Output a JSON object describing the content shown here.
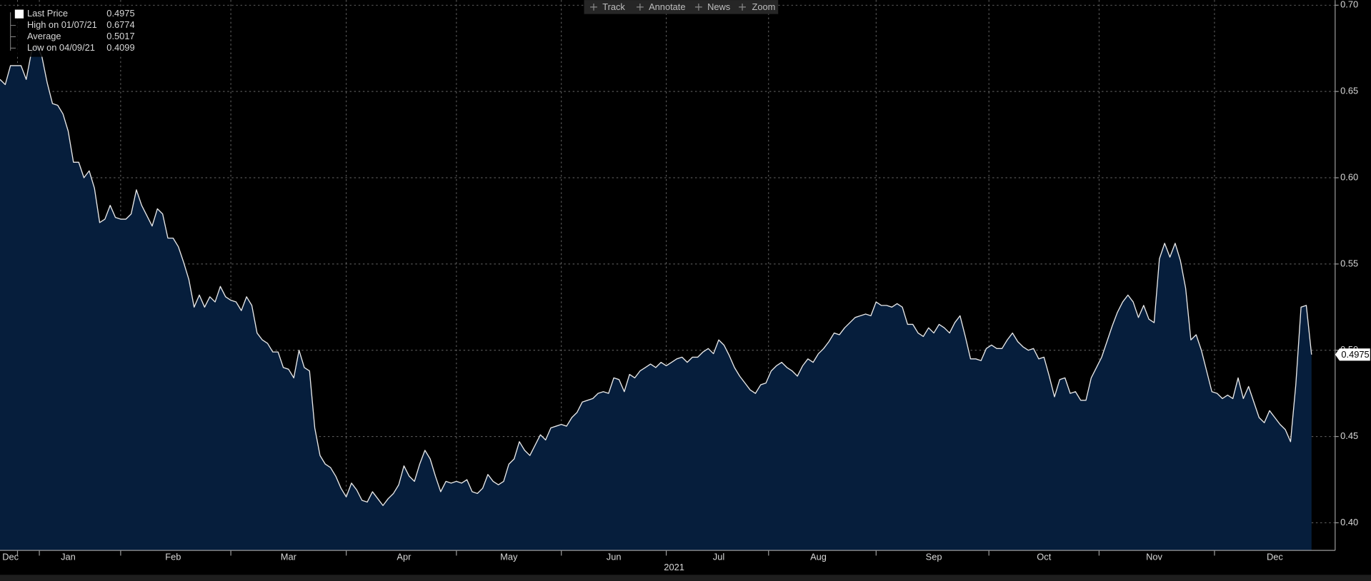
{
  "chart_data": {
    "type": "area",
    "toolbar": [
      "Track",
      "Annotate",
      "News",
      "Zoom"
    ],
    "series": [
      {
        "name": "Last Price",
        "color": "#e8e8e8",
        "fill": "#061e3c",
        "values": [
          0.657,
          0.654,
          0.665,
          0.665,
          0.665,
          0.657,
          0.673,
          0.677,
          0.67,
          0.655,
          0.643,
          0.642,
          0.637,
          0.627,
          0.609,
          0.609,
          0.6,
          0.604,
          0.594,
          0.574,
          0.576,
          0.584,
          0.577,
          0.576,
          0.576,
          0.579,
          0.593,
          0.584,
          0.578,
          0.572,
          0.582,
          0.579,
          0.565,
          0.565,
          0.56,
          0.551,
          0.541,
          0.525,
          0.532,
          0.525,
          0.531,
          0.528,
          0.537,
          0.531,
          0.529,
          0.528,
          0.523,
          0.531,
          0.526,
          0.51,
          0.506,
          0.504,
          0.499,
          0.499,
          0.49,
          0.489,
          0.484,
          0.5,
          0.49,
          0.488,
          0.455,
          0.439,
          0.434,
          0.432,
          0.427,
          0.42,
          0.415,
          0.423,
          0.419,
          0.413,
          0.412,
          0.418,
          0.414,
          0.41,
          0.414,
          0.417,
          0.422,
          0.433,
          0.427,
          0.424,
          0.434,
          0.442,
          0.437,
          0.427,
          0.418,
          0.424,
          0.423,
          0.424,
          0.423,
          0.425,
          0.418,
          0.417,
          0.42,
          0.428,
          0.424,
          0.422,
          0.424,
          0.434,
          0.437,
          0.447,
          0.442,
          0.439,
          0.445,
          0.451,
          0.448,
          0.455,
          0.456,
          0.457,
          0.456,
          0.461,
          0.464,
          0.47,
          0.471,
          0.472,
          0.475,
          0.476,
          0.475,
          0.484,
          0.483,
          0.476,
          0.486,
          0.484,
          0.488,
          0.49,
          0.492,
          0.49,
          0.493,
          0.491,
          0.493,
          0.495,
          0.496,
          0.493,
          0.496,
          0.496,
          0.499,
          0.501,
          0.498,
          0.506,
          0.503,
          0.497,
          0.49,
          0.485,
          0.481,
          0.477,
          0.475,
          0.48,
          0.481,
          0.488,
          0.491,
          0.493,
          0.49,
          0.488,
          0.485,
          0.491,
          0.495,
          0.493,
          0.498,
          0.501,
          0.505,
          0.51,
          0.509,
          0.513,
          0.516,
          0.519,
          0.52,
          0.521,
          0.52,
          0.528,
          0.526,
          0.526,
          0.525,
          0.527,
          0.525,
          0.515,
          0.515,
          0.51,
          0.508,
          0.513,
          0.51,
          0.515,
          0.513,
          0.51,
          0.516,
          0.52,
          0.508,
          0.495,
          0.495,
          0.494,
          0.501,
          0.503,
          0.501,
          0.501,
          0.506,
          0.51,
          0.505,
          0.502,
          0.5,
          0.501,
          0.495,
          0.496,
          0.485,
          0.473,
          0.483,
          0.484,
          0.475,
          0.476,
          0.471,
          0.471,
          0.484,
          0.49,
          0.496,
          0.505,
          0.514,
          0.522,
          0.528,
          0.532,
          0.528,
          0.519,
          0.526,
          0.518,
          0.516,
          0.553,
          0.562,
          0.554,
          0.562,
          0.552,
          0.536,
          0.506,
          0.509,
          0.5,
          0.488,
          0.476,
          0.475,
          0.472,
          0.474,
          0.472,
          0.484,
          0.472,
          0.479,
          0.47,
          0.461,
          0.458,
          0.465,
          0.461,
          0.457,
          0.454,
          0.447,
          0.48,
          0.525,
          0.526,
          0.4975
        ]
      }
    ],
    "stats": [
      {
        "label": "High on 01/07/21",
        "value": 0.6774
      },
      {
        "label": "Average",
        "value": 0.5017
      },
      {
        "label": "Low on 04/09/21",
        "value": 0.4099
      }
    ],
    "categories": [
      null,
      null,
      "Dec",
      null,
      null,
      null,
      null,
      null,
      null,
      null,
      null,
      null,
      null,
      "Jan",
      null,
      null,
      null,
      null,
      null,
      null,
      null,
      null,
      null,
      null,
      null,
      null,
      null,
      null,
      null,
      null,
      null,
      null,
      null,
      "Feb",
      null,
      null,
      null,
      null,
      null,
      null,
      null,
      null,
      null,
      null,
      null,
      null,
      null,
      null,
      null,
      null,
      null,
      null,
      null,
      null,
      null,
      "Mar",
      null,
      null,
      null,
      null,
      null,
      null,
      null,
      null,
      null,
      null,
      null,
      null,
      null,
      null,
      null,
      null,
      null,
      null,
      null,
      null,
      null,
      "Apr",
      null,
      null,
      null,
      null,
      null,
      null,
      null,
      null,
      null,
      null,
      null,
      null,
      null,
      null,
      null,
      null,
      null,
      null,
      null,
      "May",
      null,
      null,
      null,
      null,
      null,
      null,
      null,
      null,
      null,
      null,
      null,
      null,
      null,
      null,
      null,
      null,
      null,
      null,
      null,
      "Jun",
      null,
      null,
      null,
      null,
      null,
      null,
      null,
      null,
      null,
      null,
      null,
      null,
      null,
      null,
      null,
      null,
      null,
      null,
      null,
      "Jul",
      null,
      null,
      null,
      null,
      null,
      null,
      null,
      null,
      null,
      null,
      null,
      null,
      null,
      null,
      null,
      null,
      null,
      null,
      "Aug",
      null,
      null,
      null,
      null,
      null,
      null,
      null,
      null,
      null,
      null,
      null,
      null,
      null,
      null,
      null,
      null,
      null,
      null,
      null,
      null,
      null,
      "Sep",
      null,
      null,
      null,
      null,
      null,
      null,
      null,
      null,
      null,
      null,
      null,
      null,
      null,
      null,
      null,
      null,
      null,
      null,
      null,
      null,
      "Oct",
      null,
      null,
      null,
      null,
      null,
      null,
      null,
      null,
      null,
      null,
      null,
      null,
      null,
      null,
      null,
      null,
      null,
      null,
      null,
      null,
      "Nov",
      null,
      null,
      null,
      null,
      null,
      null,
      null,
      null,
      null,
      null,
      null,
      null,
      null,
      null,
      null,
      null,
      null,
      null,
      null,
      null,
      null,
      null,
      "Dec",
      null,
      null,
      null,
      null,
      null,
      null,
      null
    ],
    "xlabel": "2021",
    "ylim": [
      0.384,
      0.703
    ],
    "yticks": [
      {
        "value": 0.4,
        "label": "0.40"
      },
      0.45,
      {
        "value": 0.5,
        "label": "0.50"
      },
      0.55,
      {
        "value": 0.6,
        "label": "0.60"
      },
      0.65,
      {
        "value": 0.7,
        "label": "0.70"
      }
    ],
    "grid": true
  }
}
